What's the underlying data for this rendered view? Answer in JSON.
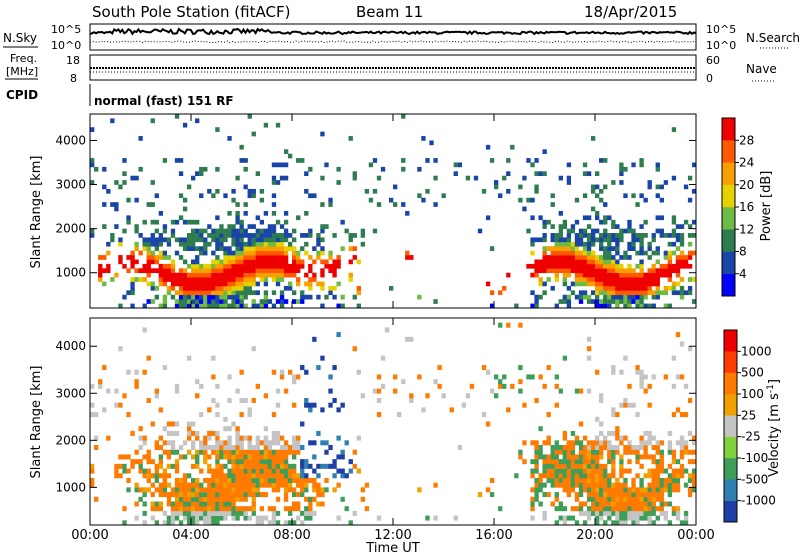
{
  "header": {
    "station": "South Pole Station (fitACF)",
    "beam": "Beam 11",
    "date": "18/Apr/2015"
  },
  "sky_panel": {
    "left_label": "N.Sky",
    "right_label": "N.Search",
    "left_ticks": [
      "10^5",
      "10^0"
    ],
    "right_ticks": [
      "10^5",
      "10^0"
    ]
  },
  "freq_panel": {
    "left_label_line1": "Freq.",
    "left_label_line2": "[MHz]",
    "right_label": "Nave",
    "left_ticks": [
      "18",
      "8"
    ],
    "right_ticks": [
      "60",
      "0"
    ]
  },
  "cpid": {
    "label": "CPID",
    "text": "normal (fast) 151 RF"
  },
  "chart_data": [
    {
      "type": "heatmap",
      "title": "",
      "xlabel": "",
      "ylabel": "Slant Range [km]",
      "xlim": [
        "00:00",
        "24:00"
      ],
      "ylim": [
        200,
        4600
      ],
      "y_ticks": [
        "1000",
        "2000",
        "3000",
        "4000"
      ],
      "colorbar": {
        "label": "Power [dB]",
        "ticks": [
          "4",
          "8",
          "12",
          "16",
          "20",
          "24",
          "28"
        ],
        "colors": [
          "#0000ff",
          "#1a45a8",
          "#2e7d4f",
          "#6dbb45",
          "#e6d200",
          "#f7a000",
          "#ff5a00",
          "#ee0000"
        ]
      }
    },
    {
      "type": "heatmap",
      "title": "",
      "xlabel": "Time UT",
      "ylabel": "Slant Range [km]",
      "xlim": [
        "00:00",
        "24:00"
      ],
      "ylim": [
        200,
        4600
      ],
      "x_ticks": [
        "00:00",
        "04:00",
        "08:00",
        "12:00",
        "16:00",
        "20:00",
        "00:00"
      ],
      "y_ticks": [
        "1000",
        "2000",
        "3000",
        "4000"
      ],
      "colorbar": {
        "label": "Velocity [m s^-1]",
        "ticks": [
          "1000",
          "500",
          "100",
          "25",
          "-25",
          "-100",
          "-500",
          "-1000"
        ],
        "colors": [
          "#1f3fa6",
          "#2f7fb0",
          "#3e9e58",
          "#7fd23a",
          "#c4c4c4",
          "#f0a000",
          "#ff7a00",
          "#ff3c00",
          "#ee0000"
        ]
      }
    }
  ]
}
